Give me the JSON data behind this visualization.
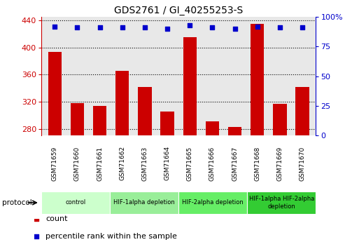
{
  "title": "GDS2761 / GI_40255253-S",
  "samples": [
    "GSM71659",
    "GSM71660",
    "GSM71661",
    "GSM71662",
    "GSM71663",
    "GSM71664",
    "GSM71665",
    "GSM71666",
    "GSM71667",
    "GSM71668",
    "GSM71669",
    "GSM71670"
  ],
  "counts": [
    393,
    318,
    314,
    365,
    342,
    305,
    415,
    291,
    283,
    435,
    317,
    342
  ],
  "percentile_ranks": [
    92,
    91,
    91,
    91,
    91,
    90,
    93,
    91,
    90,
    92,
    91,
    91
  ],
  "ylim_left": [
    270,
    445
  ],
  "ylim_right": [
    0,
    100
  ],
  "yticks_left": [
    280,
    320,
    360,
    400,
    440
  ],
  "yticks_right": [
    0,
    25,
    50,
    75,
    100
  ],
  "bar_color": "#cc0000",
  "dot_color": "#0000cc",
  "plot_bg": "#e8e8e8",
  "protocol_groups": [
    {
      "label": "control",
      "start": 0,
      "end": 2,
      "color": "#ccffcc"
    },
    {
      "label": "HIF-1alpha depletion",
      "start": 3,
      "end": 5,
      "color": "#99ee99"
    },
    {
      "label": "HIF-2alpha depletion",
      "start": 6,
      "end": 8,
      "color": "#66ee66"
    },
    {
      "label": "HIF-1alpha HIF-2alpha\ndepletion",
      "start": 9,
      "end": 11,
      "color": "#33cc33"
    }
  ],
  "legend_items": [
    {
      "label": "count",
      "color": "#cc0000"
    },
    {
      "label": "percentile rank within the sample",
      "color": "#0000cc"
    }
  ],
  "tick_bg": "#cccccc"
}
